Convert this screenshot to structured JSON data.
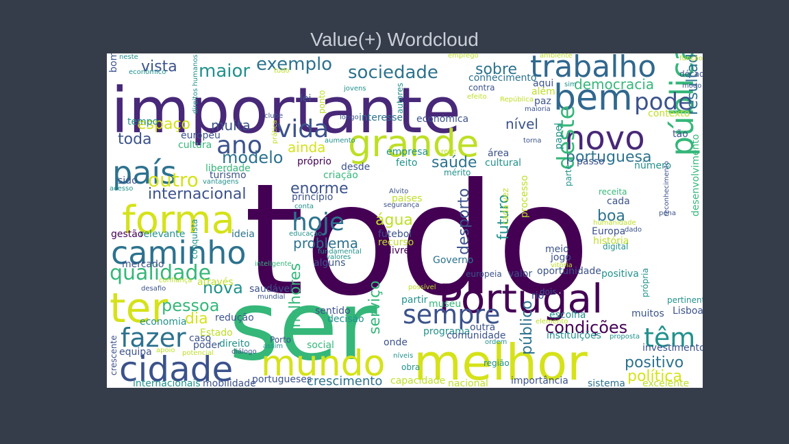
{
  "title": "Value(+) Wordcloud",
  "chart_data": {
    "type": "wordcloud",
    "title": "Value(+) Wordcloud",
    "words": [
      {
        "text": "todo",
        "color": "#440154"
      },
      {
        "text": "ser",
        "color": "#35b779"
      },
      {
        "text": "importante",
        "color": "#482878"
      },
      {
        "text": "melhor",
        "color": "#d5e21a"
      },
      {
        "text": "Portugal",
        "color": "#440154"
      },
      {
        "text": "mundo",
        "color": "#d5e21a"
      },
      {
        "text": "cidade",
        "color": "#3b528b"
      },
      {
        "text": "grande",
        "color": "#bddf26"
      },
      {
        "text": "forma",
        "color": "#d5e21a"
      },
      {
        "text": "caminho",
        "color": "#2c728e"
      },
      {
        "text": "bem",
        "color": "#31688e"
      },
      {
        "text": "novo",
        "color": "#482878"
      },
      {
        "text": "trabalho",
        "color": "#31688e"
      },
      {
        "text": "pública",
        "color": "#35b779"
      },
      {
        "text": "ter",
        "color": "#d5e21a"
      },
      {
        "text": "país",
        "color": "#2c728e"
      },
      {
        "text": "pode",
        "color": "#3b528b"
      },
      {
        "text": "sempre",
        "color": "#3b528b"
      },
      {
        "text": "fazer",
        "color": "#2c728e"
      },
      {
        "text": "têm",
        "color": "#21918c"
      },
      {
        "text": "vida",
        "color": "#3b528b"
      },
      {
        "text": "hoje",
        "color": "#2c728e"
      },
      {
        "text": "ano",
        "color": "#3b528b"
      },
      {
        "text": "qualidade",
        "color": "#35b779"
      },
      {
        "text": "deste",
        "color": "#35b779"
      },
      {
        "text": "resultado",
        "color": "#2c728e"
      },
      {
        "text": "sociedade",
        "color": "#2c728e"
      },
      {
        "text": "maior",
        "color": "#21918c"
      },
      {
        "text": "exemplo",
        "color": "#2c728e"
      },
      {
        "text": "vista",
        "color": "#3b528b"
      },
      {
        "text": "outro",
        "color": "#d5e21a"
      },
      {
        "text": "internacional",
        "color": "#3b528b"
      },
      {
        "text": "enorme",
        "color": "#3b528b"
      },
      {
        "text": "modelo",
        "color": "#2c728e"
      },
      {
        "text": "nova",
        "color": "#21918c"
      },
      {
        "text": "pessoa",
        "color": "#35b779"
      },
      {
        "text": "condições",
        "color": "#440154"
      },
      {
        "text": "positivo",
        "color": "#2c728e"
      },
      {
        "text": "política",
        "color": "#d5e21a"
      },
      {
        "text": "portuguesa",
        "color": "#2c728e"
      },
      {
        "text": "espaço",
        "color": "#d5e21a"
      },
      {
        "text": "muita",
        "color": "#3b528b"
      },
      {
        "text": "toda",
        "color": "#3b528b"
      },
      {
        "text": "saúde",
        "color": "#2c728e"
      },
      {
        "text": "boa",
        "color": "#2c728e"
      },
      {
        "text": "desporto",
        "color": "#3b528b"
      },
      {
        "text": "futuro",
        "color": "#21918c"
      },
      {
        "text": "água",
        "color": "#bddf26"
      },
      {
        "text": "problema",
        "color": "#2c728e"
      },
      {
        "text": "serviço",
        "color": "#35b779"
      },
      {
        "text": "melhores",
        "color": "#35b779"
      },
      {
        "text": "público",
        "color": "#2c728e"
      },
      {
        "text": "democracia",
        "color": "#35b779"
      },
      {
        "text": "sobre",
        "color": "#2c728e"
      },
      {
        "text": "nível",
        "color": "#3b528b"
      },
      {
        "text": "ainda",
        "color": "#d5e21a"
      },
      {
        "text": "dia",
        "color": "#d5e21a"
      },
      {
        "text": "crescimento",
        "color": "#2c728e"
      },
      {
        "text": "Europa",
        "color": "#3b528b"
      },
      {
        "text": "história",
        "color": "#bddf26"
      },
      {
        "text": "desenvolvimento",
        "color": "#35b779"
      },
      {
        "text": "oportunidade",
        "color": "#3b528b"
      },
      {
        "text": "importância",
        "color": "#3b528b"
      },
      {
        "text": "sistema",
        "color": "#2c728e"
      },
      {
        "text": "excelente",
        "color": "#bddf26"
      },
      {
        "text": "nacional",
        "color": "#bddf26"
      },
      {
        "text": "capacidade",
        "color": "#bddf26"
      },
      {
        "text": "Governo",
        "color": "#2c728e"
      },
      {
        "text": "economia",
        "color": "#21918c"
      },
      {
        "text": "redução",
        "color": "#3b528b"
      },
      {
        "text": "mercado",
        "color": "#3b528b"
      },
      {
        "text": "através",
        "color": "#bddf26"
      },
      {
        "text": "relevante",
        "color": "#21918c"
      },
      {
        "text": "gestão",
        "color": "#440154"
      },
      {
        "text": "ideia",
        "color": "#2c728e"
      },
      {
        "text": "conquista",
        "color": "#21918c"
      },
      {
        "text": "liberdade",
        "color": "#35b779"
      },
      {
        "text": "turismo",
        "color": "#3b528b"
      },
      {
        "text": "europeu",
        "color": "#3b528b"
      },
      {
        "text": "cultura",
        "color": "#35b779"
      },
      {
        "text": "tempo",
        "color": "#21918c"
      },
      {
        "text": "bom",
        "color": "#3b528b"
      },
      {
        "text": "neste",
        "color": "#21918c"
      },
      {
        "text": "económico",
        "color": "#21918c"
      },
      {
        "text": "direitos humanos",
        "color": "#21918c"
      },
      {
        "text": "lei",
        "color": "#3b528b"
      },
      {
        "text": "jovens",
        "color": "#21918c"
      },
      {
        "text": "ponto",
        "color": "#bddf26"
      },
      {
        "text": "autores",
        "color": "#21918c"
      },
      {
        "text": "tudo",
        "color": "#bddf26"
      },
      {
        "text": "emprego",
        "color": "#bddf26"
      },
      {
        "text": "ambiente",
        "color": "#bddf26"
      },
      {
        "text": "função",
        "color": "#bddf26"
      },
      {
        "text": "conhecimento",
        "color": "#2c728e"
      },
      {
        "text": "aqui",
        "color": "#3b528b"
      },
      {
        "text": "além",
        "color": "#bddf26"
      },
      {
        "text": "paz",
        "color": "#3b528b"
      },
      {
        "text": "contra",
        "color": "#3b528b"
      },
      {
        "text": "efeito",
        "color": "#bddf26"
      },
      {
        "text": "República",
        "color": "#bddf26"
      },
      {
        "text": "maioria",
        "color": "#3b528b"
      },
      {
        "text": "sim",
        "color": "#21918c"
      },
      {
        "text": "década",
        "color": "#3b528b"
      },
      {
        "text": "modo",
        "color": "#3b528b"
      },
      {
        "text": "contexto",
        "color": "#bddf26"
      },
      {
        "text": "tão",
        "color": "#3b528b"
      },
      {
        "text": "interesse",
        "color": "#2c728e"
      },
      {
        "text": "económica",
        "color": "#3b528b"
      },
      {
        "text": "longo",
        "color": "#3b528b"
      },
      {
        "text": "clube",
        "color": "#3b528b"
      },
      {
        "text": "prática",
        "color": "#bddf26"
      },
      {
        "text": "aumento",
        "color": "#21918c"
      },
      {
        "text": "empresa",
        "color": "#21918c"
      },
      {
        "text": "rede",
        "color": "#bddf26"
      },
      {
        "text": "área",
        "color": "#3b528b"
      },
      {
        "text": "torna",
        "color": "#3b528b"
      },
      {
        "text": "papel",
        "color": "#21918c"
      },
      {
        "text": "passo",
        "color": "#3b528b"
      },
      {
        "text": "número",
        "color": "#21918c"
      },
      {
        "text": "parte",
        "color": "#21918c"
      },
      {
        "text": "próprio",
        "color": "#440154"
      },
      {
        "text": "desde",
        "color": "#3b528b"
      },
      {
        "text": "feito",
        "color": "#21918c"
      },
      {
        "text": "cultural",
        "color": "#21918c"
      },
      {
        "text": "criação",
        "color": "#35b779"
      },
      {
        "text": "mérito",
        "color": "#21918c"
      },
      {
        "text": "sido",
        "color": "#3b528b"
      },
      {
        "text": "vantagens",
        "color": "#21918c"
      },
      {
        "text": "acesso",
        "color": "#21918c"
      },
      {
        "text": "princípio",
        "color": "#3b528b"
      },
      {
        "text": "países",
        "color": "#bddf26"
      },
      {
        "text": "segurança",
        "color": "#3b528b"
      },
      {
        "text": "Alvito",
        "color": "#3b528b"
      },
      {
        "text": "conta",
        "color": "#21918c"
      },
      {
        "text": "receita",
        "color": "#35b779"
      },
      {
        "text": "cada",
        "color": "#3b528b"
      },
      {
        "text": "pena",
        "color": "#3b528b"
      },
      {
        "text": "humanidade",
        "color": "#bddf26"
      },
      {
        "text": "dado",
        "color": "#3b528b"
      },
      {
        "text": "reconhecimento",
        "color": "#3b528b"
      },
      {
        "text": "digital",
        "color": "#21918c"
      },
      {
        "text": "educação",
        "color": "#21918c"
      },
      {
        "text": "futebol",
        "color": "#3b528b"
      },
      {
        "text": "recurso",
        "color": "#bddf26"
      },
      {
        "text": "processo",
        "color": "#bddf26"
      },
      {
        "text": "cada vez",
        "color": "#bddf26"
      },
      {
        "text": "livre",
        "color": "#440154"
      },
      {
        "text": "fundamental",
        "color": "#21918c"
      },
      {
        "text": "valores",
        "color": "#21918c"
      },
      {
        "text": "alguns",
        "color": "#3b528b"
      },
      {
        "text": "inteligente",
        "color": "#35b779"
      },
      {
        "text": "meio",
        "color": "#3b528b"
      },
      {
        "text": "jogo",
        "color": "#3b528b"
      },
      {
        "text": "vitória",
        "color": "#bddf26"
      },
      {
        "text": "europeia",
        "color": "#3b528b"
      },
      {
        "text": "valor",
        "color": "#3b528b"
      },
      {
        "text": "positiva",
        "color": "#21918c"
      },
      {
        "text": "confiança",
        "color": "#bddf26"
      },
      {
        "text": "desafio",
        "color": "#3b528b"
      },
      {
        "text": "saudável",
        "color": "#3b528b"
      },
      {
        "text": "mundial",
        "color": "#3b528b"
      },
      {
        "text": "possível",
        "color": "#bddf26"
      },
      {
        "text": "partir",
        "color": "#21918c"
      },
      {
        "text": "rio",
        "color": "#3b528b"
      },
      {
        "text": "dois",
        "color": "#3b528b"
      },
      {
        "text": "própria",
        "color": "#21918c"
      },
      {
        "text": "pertinente",
        "color": "#21918c"
      },
      {
        "text": "museu",
        "color": "#35b779"
      },
      {
        "text": "sentido",
        "color": "#3b528b"
      },
      {
        "text": "decisão",
        "color": "#21918c"
      },
      {
        "text": "outra",
        "color": "#3b528b"
      },
      {
        "text": "escolha",
        "color": "#21918c"
      },
      {
        "text": "muitos",
        "color": "#3b528b"
      },
      {
        "text": "Lisboa",
        "color": "#3b528b"
      },
      {
        "text": "elemento",
        "color": "#bddf26"
      },
      {
        "text": "Estado",
        "color": "#bddf26"
      },
      {
        "text": "caso",
        "color": "#3b528b"
      },
      {
        "text": "poder",
        "color": "#3b528b"
      },
      {
        "text": "direito",
        "color": "#21918c"
      },
      {
        "text": "Porto",
        "color": "#3b528b"
      },
      {
        "text": "assim",
        "color": "#21918c"
      },
      {
        "text": "programa",
        "color": "#21918c"
      },
      {
        "text": "comunidade",
        "color": "#3b528b"
      },
      {
        "text": "ordem",
        "color": "#21918c"
      },
      {
        "text": "instituições",
        "color": "#21918c"
      },
      {
        "text": "proposta",
        "color": "#21918c"
      },
      {
        "text": "investimento",
        "color": "#3b528b"
      },
      {
        "text": "equipa",
        "color": "#3b528b"
      },
      {
        "text": "apoio",
        "color": "#bddf26"
      },
      {
        "text": "potencial",
        "color": "#bddf26"
      },
      {
        "text": "diálogo",
        "color": "#3b528b"
      },
      {
        "text": "social",
        "color": "#35b779"
      },
      {
        "text": "onde",
        "color": "#3b528b"
      },
      {
        "text": "níveis",
        "color": "#21918c"
      },
      {
        "text": "obra",
        "color": "#21918c"
      },
      {
        "text": "região",
        "color": "#21918c"
      },
      {
        "text": "crescente",
        "color": "#3b528b"
      },
      {
        "text": "internacionais",
        "color": "#21918c"
      },
      {
        "text": "mobilidade",
        "color": "#3b528b"
      },
      {
        "text": "portugueses",
        "color": "#3b528b"
      }
    ]
  }
}
